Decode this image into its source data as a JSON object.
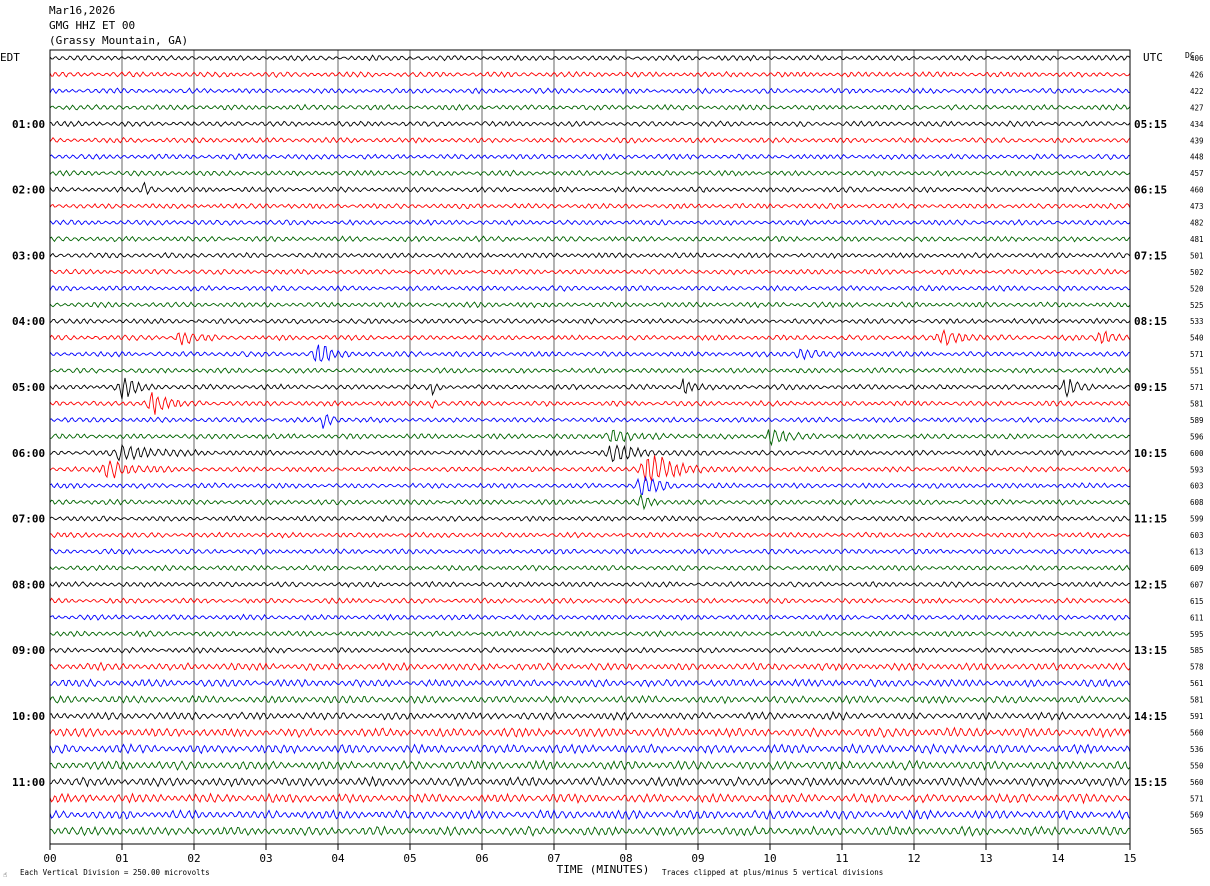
{
  "header": {
    "date": "Mar16,2026",
    "station": "GMG HHZ ET 00",
    "location": "(Grassy Mountain, GA)"
  },
  "chart_data": {
    "type": "line",
    "title": "",
    "left_axis_label": "EDT",
    "right_axis_label": "UTC",
    "dc_label": "DC",
    "xlabel": "TIME (MINUTES)",
    "xlim": [
      0,
      15
    ],
    "x_ticks": [
      "00",
      "01",
      "02",
      "03",
      "04",
      "05",
      "06",
      "07",
      "08",
      "09",
      "10",
      "11",
      "12",
      "13",
      "14",
      "15"
    ],
    "left_hour_labels": [
      "01:00",
      "02:00",
      "03:00",
      "04:00",
      "05:00",
      "06:00",
      "07:00",
      "08:00",
      "09:00",
      "10:00",
      "11:00"
    ],
    "right_hour_labels": [
      "05:15",
      "06:15",
      "07:15",
      "08:15",
      "09:15",
      "10:15",
      "11:15",
      "12:15",
      "13:15",
      "14:15",
      "15:15"
    ],
    "hour_label_rows": [
      4,
      8,
      12,
      16,
      20,
      24,
      28,
      32,
      36,
      40,
      44
    ],
    "trace_colors": [
      "#000000",
      "#ff0000",
      "#0000ff",
      "#006400"
    ],
    "dc_offsets": [
      406,
      426,
      422,
      427,
      434,
      439,
      448,
      457,
      460,
      473,
      482,
      481,
      501,
      502,
      520,
      525,
      533,
      540,
      571,
      551,
      571,
      581,
      589,
      596,
      600,
      593,
      603,
      608,
      599,
      603,
      613,
      609,
      607,
      615,
      611,
      595,
      585,
      578,
      561,
      581,
      591,
      560,
      536,
      550,
      560,
      571,
      569,
      565
    ],
    "events": [
      {
        "row": 8,
        "minute": 1.3,
        "strength": 1.6,
        "width": 0.15
      },
      {
        "row": 17,
        "minute": 1.8,
        "strength": 1.4,
        "width": 0.3
      },
      {
        "row": 17,
        "minute": 12.4,
        "strength": 1.5,
        "width": 0.4
      },
      {
        "row": 17,
        "minute": 14.6,
        "strength": 1.6,
        "width": 0.3
      },
      {
        "row": 18,
        "minute": 3.7,
        "strength": 2.5,
        "width": 0.3
      },
      {
        "row": 18,
        "minute": 10.4,
        "strength": 1.4,
        "width": 0.3
      },
      {
        "row": 20,
        "minute": 1.0,
        "strength": 2.4,
        "width": 0.3
      },
      {
        "row": 20,
        "minute": 5.3,
        "strength": 2.2,
        "width": 0.08
      },
      {
        "row": 20,
        "minute": 8.8,
        "strength": 2.8,
        "width": 0.15
      },
      {
        "row": 20,
        "minute": 14.1,
        "strength": 2.4,
        "width": 0.2
      },
      {
        "row": 21,
        "minute": 1.4,
        "strength": 2.8,
        "width": 0.3
      },
      {
        "row": 21,
        "minute": 5.3,
        "strength": 2.0,
        "width": 0.08
      },
      {
        "row": 22,
        "minute": 3.8,
        "strength": 2.5,
        "width": 0.15
      },
      {
        "row": 23,
        "minute": 7.8,
        "strength": 1.7,
        "width": 0.4
      },
      {
        "row": 23,
        "minute": 10.0,
        "strength": 2.0,
        "width": 0.3
      },
      {
        "row": 24,
        "minute": 1.0,
        "strength": 1.8,
        "width": 0.6
      },
      {
        "row": 24,
        "minute": 7.8,
        "strength": 2.0,
        "width": 0.5
      },
      {
        "row": 25,
        "minute": 0.8,
        "strength": 2.3,
        "width": 0.4
      },
      {
        "row": 25,
        "minute": 8.3,
        "strength": 4.0,
        "width": 0.5
      },
      {
        "row": 26,
        "minute": 8.2,
        "strength": 2.5,
        "width": 0.3
      },
      {
        "row": 27,
        "minute": 8.2,
        "strength": 1.8,
        "width": 0.2
      }
    ]
  },
  "footer": {
    "scale_note": "Each Vertical Division =  250.00 microvolts",
    "clip_note": "Traces clipped at plus/minus 5 vertical divisions",
    "corner_glyph": "☝"
  }
}
